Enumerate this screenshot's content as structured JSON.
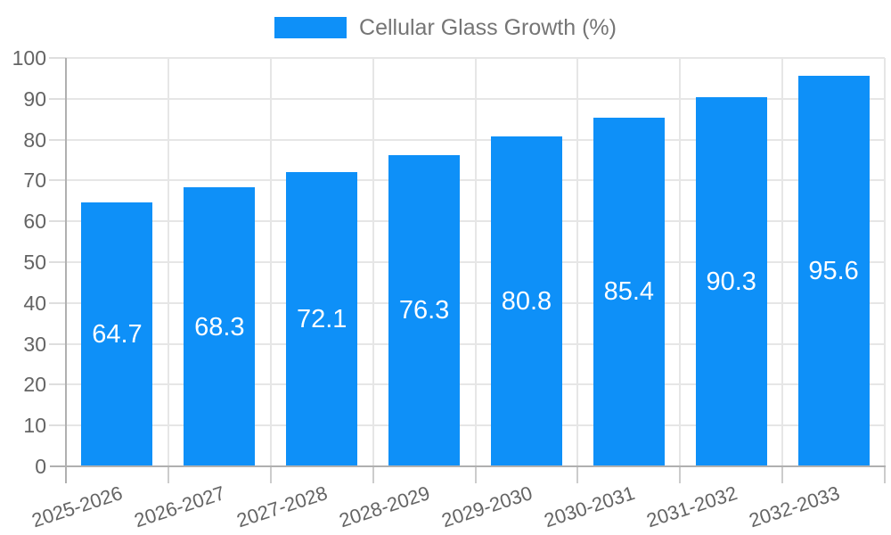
{
  "legend": {
    "label": "Cellular Glass Growth (%)"
  },
  "colors": {
    "bar": "#0e90f8",
    "grid": "#e6e6e6",
    "axis_line": "#b0b0b0",
    "tick": "#cccccc",
    "axis_text": "#646464",
    "legend_text": "#757575",
    "value_text": "#ffffff",
    "background": "#ffffff"
  },
  "chart_data": {
    "type": "bar",
    "title": "",
    "xlabel": "",
    "ylabel": "",
    "categories": [
      "2025-2026",
      "2026-2027",
      "2027-2028",
      "2028-2029",
      "2029-2030",
      "2030-2031",
      "2031-2032",
      "2032-2033"
    ],
    "series": [
      {
        "name": "Cellular Glass Growth (%)",
        "values": [
          64.7,
          68.3,
          72.1,
          76.3,
          80.8,
          85.4,
          90.3,
          95.6
        ]
      }
    ],
    "value_labels": [
      "64.7",
      "68.3",
      "72.1",
      "76.3",
      "80.8",
      "85.4",
      "90.3",
      "95.6"
    ],
    "ylim": [
      0,
      100
    ],
    "ytick_interval": 10,
    "yticks": [
      0,
      10,
      20,
      30,
      40,
      50,
      60,
      70,
      80,
      90,
      100
    ],
    "grid": true,
    "legend_position": "top",
    "x_label_rotation_deg": -18
  }
}
